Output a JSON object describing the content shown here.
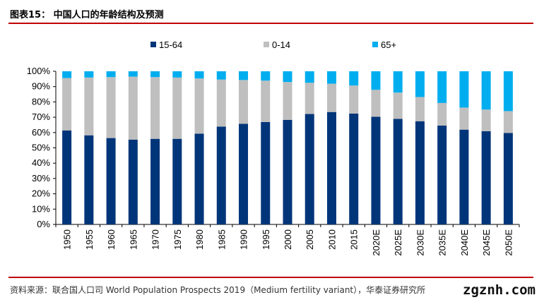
{
  "header": {
    "title": "图表15：  中国人口的年龄结构及预测"
  },
  "footer": {
    "source": "资料来源：联合国人口司 World Population Prospects 2019（Medium fertility variant），华泰证券研究所",
    "watermark": "zgznh.com"
  },
  "chart_data": {
    "type": "bar",
    "stacked": true,
    "categories": [
      "1950",
      "1955",
      "1960",
      "1965",
      "1970",
      "1975",
      "1980",
      "1985",
      "1990",
      "1995",
      "2000",
      "2005",
      "2010",
      "2015",
      "2020E",
      "2025E",
      "2030E",
      "2035E",
      "2040E",
      "2045E",
      "2050E"
    ],
    "series": [
      {
        "name": "15-64",
        "color": "#003579",
        "values": [
          61.4,
          58.2,
          56.4,
          55.4,
          55.9,
          55.9,
          59.3,
          63.9,
          65.7,
          66.9,
          68.3,
          72.1,
          73.4,
          72.4,
          70.3,
          68.9,
          67.4,
          64.6,
          61.9,
          60.9,
          59.7
        ]
      },
      {
        "name": "0-14",
        "color": "#bfbfbf",
        "values": [
          34.2,
          37.7,
          39.8,
          41.1,
          40.3,
          40.0,
          36.0,
          30.7,
          28.6,
          27.0,
          24.7,
          20.4,
          18.5,
          18.3,
          17.6,
          17.2,
          15.8,
          14.7,
          14.4,
          14.1,
          14.3
        ]
      },
      {
        "name": "65+",
        "color": "#00aeef",
        "values": [
          4.4,
          4.1,
          3.8,
          3.5,
          3.8,
          4.1,
          4.7,
          5.4,
          5.7,
          6.1,
          7.0,
          7.5,
          8.1,
          9.3,
          12.1,
          13.9,
          16.8,
          20.7,
          23.7,
          25.0,
          26.0
        ]
      }
    ],
    "yticks": [
      "0%",
      "10%",
      "20%",
      "30%",
      "40%",
      "50%",
      "60%",
      "70%",
      "80%",
      "90%",
      "100%"
    ],
    "ylim": [
      0,
      100
    ],
    "legend": "top",
    "grid": false
  }
}
